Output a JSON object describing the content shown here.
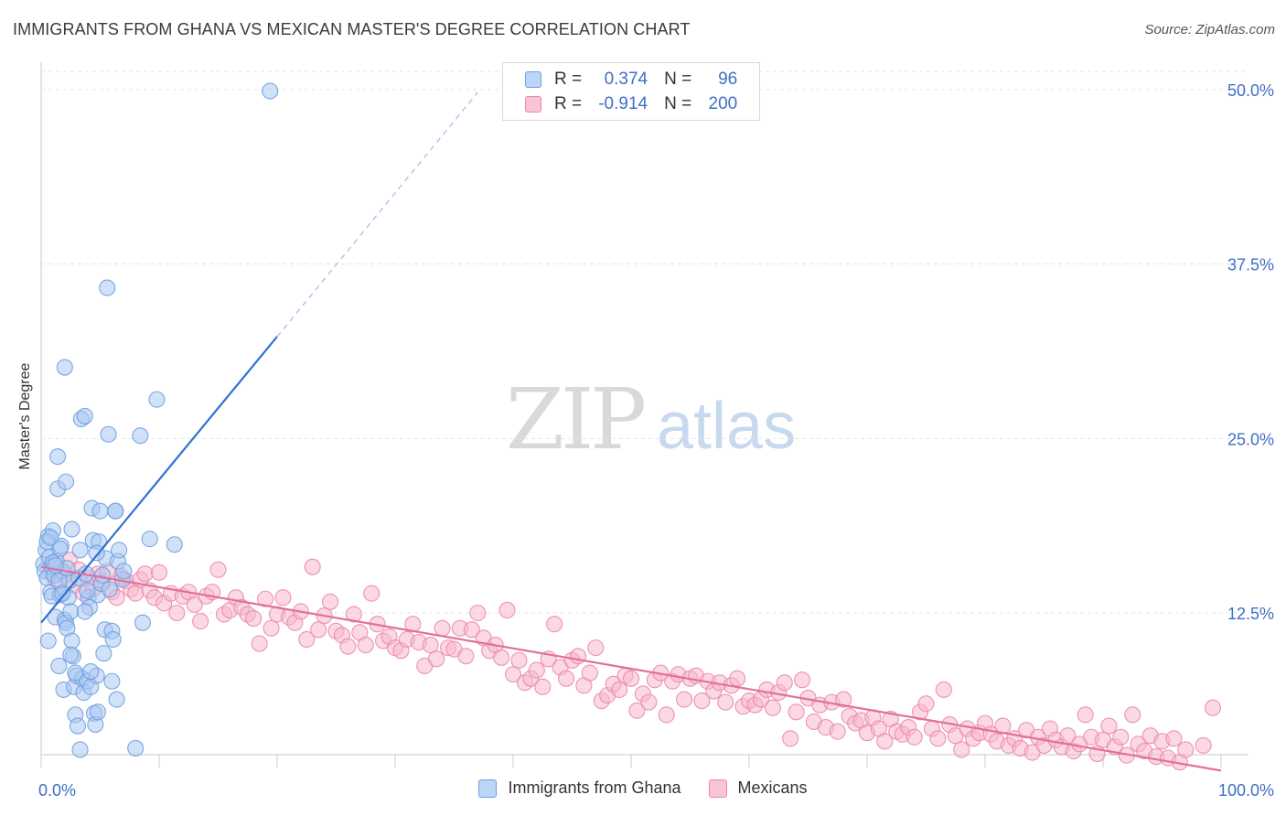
{
  "title": "IMMIGRANTS FROM GHANA VS MEXICAN MASTER'S DEGREE CORRELATION CHART",
  "source": "Source: ZipAtlas.com",
  "watermark": {
    "part1": "ZIP",
    "part2": "atlas"
  },
  "legend_top": {
    "rows": [
      {
        "r_label": "R =",
        "r_value": "0.374",
        "n_label": "N =",
        "n_value": "96",
        "color": "#a9c8f2",
        "border": "#6f9ee0"
      },
      {
        "r_label": "R =",
        "r_value": "-0.914",
        "n_label": "N =",
        "n_value": "200",
        "color": "#f7b8cc",
        "border": "#ea89a8"
      }
    ]
  },
  "legend_bottom": [
    {
      "label": "Immigrants from Ghana",
      "color": "#bcd6f7",
      "border": "#6f9ee0"
    },
    {
      "label": "Mexicans",
      "color": "#f9c4d5",
      "border": "#ea89a8"
    }
  ],
  "chart_data": {
    "type": "scatter",
    "title": "IMMIGRANTS FROM GHANA VS MEXICAN MASTER'S DEGREE CORRELATION CHART",
    "xlabel": "",
    "ylabel": "Master's Degree",
    "xlim": [
      0,
      100
    ],
    "ylim": [
      0,
      52
    ],
    "x_tick_labels": [
      "0.0%",
      "100.0%"
    ],
    "y_ticks": [
      12.5,
      25.0,
      37.5,
      50.0
    ],
    "y_tick_labels": [
      "12.5%",
      "25.0%",
      "37.5%",
      "50.0%"
    ],
    "grid": "horizontal dashed",
    "legend": "top-center",
    "series": [
      {
        "name": "Immigrants from Ghana",
        "color": "#6f9ee0",
        "fill": "#a9c8f2",
        "trend": {
          "x": [
            0,
            20
          ],
          "y": [
            11.8,
            32.3
          ],
          "extended_to": [
            37.0,
            49.8
          ],
          "line_color": "#2f72d2"
        },
        "points": [
          [
            0.2,
            16.0
          ],
          [
            0.3,
            15.5
          ],
          [
            0.4,
            17.0
          ],
          [
            0.5,
            15.0
          ],
          [
            0.6,
            18.0
          ],
          [
            0.6,
            10.5
          ],
          [
            0.7,
            16.5
          ],
          [
            0.8,
            14.0
          ],
          [
            0.9,
            15.8
          ],
          [
            1.0,
            18.4
          ],
          [
            1.1,
            15.2
          ],
          [
            1.2,
            12.2
          ],
          [
            1.3,
            16.2
          ],
          [
            1.4,
            21.4
          ],
          [
            1.4,
            23.7
          ],
          [
            1.5,
            8.7
          ],
          [
            1.6,
            13.8
          ],
          [
            1.7,
            17.3
          ],
          [
            1.8,
            15.5
          ],
          [
            1.9,
            7.0
          ],
          [
            2.0,
            12.0
          ],
          [
            2.1,
            11.8
          ],
          [
            2.2,
            11.4
          ],
          [
            2.3,
            13.6
          ],
          [
            2.4,
            14.8
          ],
          [
            2.5,
            12.6
          ],
          [
            2.6,
            10.5
          ],
          [
            2.6,
            18.5
          ],
          [
            2.7,
            9.4
          ],
          [
            2.8,
            7.2
          ],
          [
            2.0,
            30.1
          ],
          [
            2.9,
            5.2
          ],
          [
            3.0,
            8.0
          ],
          [
            3.1,
            4.4
          ],
          [
            3.2,
            15.0
          ],
          [
            3.3,
            17.0
          ],
          [
            3.4,
            26.4
          ],
          [
            3.5,
            7.8
          ],
          [
            3.6,
            6.8
          ],
          [
            2.1,
            21.9
          ],
          [
            3.7,
            26.6
          ],
          [
            3.8,
            15.3
          ],
          [
            3.9,
            7.6
          ],
          [
            4.0,
            13.6
          ],
          [
            4.1,
            12.9
          ],
          [
            4.2,
            7.2
          ],
          [
            4.3,
            20.0
          ],
          [
            4.4,
            17.7
          ],
          [
            4.5,
            5.3
          ],
          [
            4.6,
            4.5
          ],
          [
            4.7,
            8.0
          ],
          [
            4.8,
            13.8
          ],
          [
            4.9,
            17.6
          ],
          [
            5.0,
            19.8
          ],
          [
            5.1,
            14.6
          ],
          [
            5.2,
            15.2
          ],
          [
            5.3,
            9.6
          ],
          [
            5.4,
            11.3
          ],
          [
            5.5,
            16.4
          ],
          [
            5.6,
            35.8
          ],
          [
            5.7,
            25.3
          ],
          [
            5.8,
            14.2
          ],
          [
            6.0,
            11.2
          ],
          [
            6.1,
            10.6
          ],
          [
            6.3,
            19.8
          ],
          [
            6.4,
            6.3
          ],
          [
            6.5,
            16.2
          ],
          [
            6.6,
            17.0
          ],
          [
            6.9,
            14.9
          ],
          [
            4.8,
            5.4
          ],
          [
            6.0,
            7.6
          ],
          [
            3.3,
            2.7
          ],
          [
            6.3,
            19.8
          ],
          [
            7.0,
            15.5
          ],
          [
            8.0,
            2.8
          ],
          [
            8.4,
            25.2
          ],
          [
            8.6,
            11.8
          ],
          [
            9.2,
            17.8
          ],
          [
            9.8,
            27.8
          ],
          [
            11.3,
            17.4
          ],
          [
            19.4,
            49.9
          ],
          [
            1.0,
            16.1
          ],
          [
            1.5,
            14.8
          ],
          [
            2.2,
            15.7
          ],
          [
            0.9,
            13.7
          ],
          [
            1.8,
            13.9
          ],
          [
            2.9,
            8.2
          ],
          [
            3.7,
            12.6
          ],
          [
            4.2,
            8.3
          ],
          [
            1.2,
            15.9
          ],
          [
            0.5,
            17.6
          ],
          [
            0.8,
            17.9
          ],
          [
            1.6,
            17.1
          ],
          [
            2.5,
            9.5
          ],
          [
            3.9,
            14.1
          ],
          [
            4.7,
            16.8
          ]
        ]
      },
      {
        "name": "Mexicans",
        "color": "#ea89a8",
        "fill": "#f7b8cc",
        "trend": {
          "x": [
            0,
            100
          ],
          "y": [
            15.8,
            1.2
          ],
          "line_color": "#e2709a"
        },
        "points": [
          [
            0.8,
            15.4
          ],
          [
            1.2,
            14.9
          ],
          [
            1.6,
            13.8
          ],
          [
            2.0,
            15.2
          ],
          [
            2.4,
            16.3
          ],
          [
            2.8,
            14.5
          ],
          [
            3.2,
            15.6
          ],
          [
            3.6,
            13.9
          ],
          [
            4.0,
            15.0
          ],
          [
            4.4,
            14.2
          ],
          [
            4.8,
            15.3
          ],
          [
            5.2,
            14.7
          ],
          [
            5.6,
            15.5
          ],
          [
            6.0,
            14.0
          ],
          [
            6.4,
            13.6
          ],
          [
            6.8,
            15.1
          ],
          [
            7.2,
            14.8
          ],
          [
            7.6,
            14.2
          ],
          [
            8.0,
            13.9
          ],
          [
            8.4,
            14.9
          ],
          [
            8.8,
            15.3
          ],
          [
            9.2,
            14.1
          ],
          [
            9.6,
            13.6
          ],
          [
            10.0,
            15.4
          ],
          [
            10.4,
            13.2
          ],
          [
            11.0,
            13.9
          ],
          [
            11.5,
            12.5
          ],
          [
            12.0,
            13.7
          ],
          [
            12.5,
            14.0
          ],
          [
            13.0,
            13.1
          ],
          [
            13.5,
            11.9
          ],
          [
            14.0,
            13.7
          ],
          [
            14.5,
            14.0
          ],
          [
            15.0,
            15.6
          ],
          [
            15.5,
            12.4
          ],
          [
            16.0,
            12.7
          ],
          [
            16.5,
            13.6
          ],
          [
            17.0,
            12.9
          ],
          [
            17.5,
            12.4
          ],
          [
            18.0,
            12.1
          ],
          [
            18.5,
            10.3
          ],
          [
            19.0,
            13.5
          ],
          [
            19.5,
            11.4
          ],
          [
            20.0,
            12.4
          ],
          [
            20.5,
            13.6
          ],
          [
            21.0,
            12.2
          ],
          [
            21.5,
            11.8
          ],
          [
            22.0,
            12.6
          ],
          [
            22.5,
            10.6
          ],
          [
            23.0,
            15.8
          ],
          [
            23.5,
            11.3
          ],
          [
            24.0,
            12.3
          ],
          [
            24.5,
            13.3
          ],
          [
            25.0,
            11.2
          ],
          [
            25.5,
            10.9
          ],
          [
            26.0,
            10.1
          ],
          [
            26.5,
            12.4
          ],
          [
            27.0,
            11.1
          ],
          [
            27.5,
            10.2
          ],
          [
            28.0,
            13.9
          ],
          [
            28.5,
            11.7
          ],
          [
            29.0,
            10.5
          ],
          [
            29.5,
            10.8
          ],
          [
            30.0,
            10.0
          ],
          [
            30.5,
            9.8
          ],
          [
            31.0,
            10.6
          ],
          [
            31.5,
            11.7
          ],
          [
            32.0,
            10.4
          ],
          [
            32.5,
            8.7
          ],
          [
            33.0,
            10.2
          ],
          [
            33.5,
            9.2
          ],
          [
            34.0,
            11.4
          ],
          [
            34.5,
            10.0
          ],
          [
            35.0,
            9.9
          ],
          [
            35.5,
            11.4
          ],
          [
            36.0,
            9.4
          ],
          [
            36.5,
            11.3
          ],
          [
            37.0,
            12.5
          ],
          [
            37.5,
            10.7
          ],
          [
            38.0,
            9.8
          ],
          [
            38.5,
            10.2
          ],
          [
            39.0,
            9.3
          ],
          [
            39.5,
            12.7
          ],
          [
            40.0,
            8.1
          ],
          [
            40.5,
            9.1
          ],
          [
            41.0,
            7.5
          ],
          [
            41.5,
            7.8
          ],
          [
            42.0,
            8.4
          ],
          [
            42.5,
            7.2
          ],
          [
            43.0,
            9.2
          ],
          [
            43.5,
            11.7
          ],
          [
            44.0,
            8.6
          ],
          [
            44.5,
            7.8
          ],
          [
            45.0,
            9.1
          ],
          [
            45.5,
            9.4
          ],
          [
            46.0,
            7.3
          ],
          [
            46.5,
            8.2
          ],
          [
            47.0,
            10.0
          ],
          [
            47.5,
            6.2
          ],
          [
            48.0,
            6.6
          ],
          [
            48.5,
            7.4
          ],
          [
            49.0,
            7.0
          ],
          [
            49.5,
            8.0
          ],
          [
            50.0,
            7.8
          ],
          [
            50.5,
            5.5
          ],
          [
            51.0,
            6.7
          ],
          [
            51.5,
            6.1
          ],
          [
            52.0,
            7.7
          ],
          [
            52.5,
            8.2
          ],
          [
            53.0,
            5.2
          ],
          [
            53.5,
            7.6
          ],
          [
            54.0,
            8.1
          ],
          [
            54.5,
            6.3
          ],
          [
            55.0,
            7.8
          ],
          [
            55.5,
            8.0
          ],
          [
            56.0,
            6.2
          ],
          [
            56.5,
            7.6
          ],
          [
            57.0,
            6.9
          ],
          [
            57.5,
            7.5
          ],
          [
            58.0,
            6.1
          ],
          [
            58.5,
            7.3
          ],
          [
            59.0,
            7.8
          ],
          [
            59.5,
            5.8
          ],
          [
            60.0,
            6.2
          ],
          [
            60.5,
            5.9
          ],
          [
            61.0,
            6.3
          ],
          [
            61.5,
            7.0
          ],
          [
            62.0,
            5.7
          ],
          [
            62.5,
            6.8
          ],
          [
            63.0,
            7.5
          ],
          [
            63.5,
            3.5
          ],
          [
            64.0,
            5.4
          ],
          [
            64.5,
            7.7
          ],
          [
            65.0,
            6.4
          ],
          [
            65.5,
            4.7
          ],
          [
            66.0,
            5.9
          ],
          [
            66.5,
            4.3
          ],
          [
            67.0,
            6.1
          ],
          [
            67.5,
            4.0
          ],
          [
            68.0,
            6.3
          ],
          [
            68.5,
            5.1
          ],
          [
            69.0,
            4.6
          ],
          [
            69.5,
            4.8
          ],
          [
            70.0,
            3.9
          ],
          [
            70.5,
            5.0
          ],
          [
            71.0,
            4.2
          ],
          [
            71.5,
            3.3
          ],
          [
            72.0,
            4.9
          ],
          [
            72.5,
            4.0
          ],
          [
            73.0,
            3.8
          ],
          [
            73.5,
            4.3
          ],
          [
            74.0,
            3.6
          ],
          [
            74.5,
            5.4
          ],
          [
            75.0,
            6.0
          ],
          [
            75.5,
            4.2
          ],
          [
            76.0,
            3.5
          ],
          [
            76.5,
            7.0
          ],
          [
            77.0,
            4.5
          ],
          [
            77.5,
            3.7
          ],
          [
            78.0,
            2.7
          ],
          [
            78.5,
            4.2
          ],
          [
            79.0,
            3.5
          ],
          [
            79.5,
            3.9
          ],
          [
            80.0,
            4.6
          ],
          [
            80.5,
            3.8
          ],
          [
            81.0,
            3.3
          ],
          [
            81.5,
            4.4
          ],
          [
            82.0,
            3.0
          ],
          [
            82.5,
            3.5
          ],
          [
            83.0,
            2.8
          ],
          [
            83.5,
            4.1
          ],
          [
            84.0,
            2.5
          ],
          [
            84.5,
            3.6
          ],
          [
            85.0,
            3.0
          ],
          [
            85.5,
            4.2
          ],
          [
            86.0,
            3.4
          ],
          [
            86.5,
            2.9
          ],
          [
            87.0,
            3.7
          ],
          [
            87.5,
            2.6
          ],
          [
            88.0,
            3.1
          ],
          [
            88.5,
            5.2
          ],
          [
            89.0,
            3.6
          ],
          [
            89.5,
            2.4
          ],
          [
            90.0,
            3.4
          ],
          [
            90.5,
            4.4
          ],
          [
            91.0,
            2.9
          ],
          [
            91.5,
            3.6
          ],
          [
            92.0,
            2.3
          ],
          [
            92.5,
            5.2
          ],
          [
            93.0,
            3.1
          ],
          [
            93.5,
            2.6
          ],
          [
            94.0,
            3.7
          ],
          [
            94.5,
            2.2
          ],
          [
            95.0,
            3.3
          ],
          [
            95.5,
            2.1
          ],
          [
            96.0,
            3.5
          ],
          [
            96.5,
            1.8
          ],
          [
            97.0,
            2.7
          ],
          [
            98.5,
            3.0
          ],
          [
            99.3,
            5.7
          ]
        ]
      }
    ]
  }
}
